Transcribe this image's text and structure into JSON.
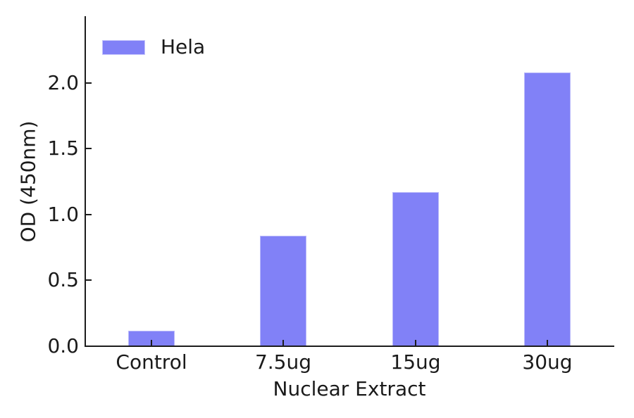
{
  "chart_data": {
    "type": "bar",
    "title": "",
    "xlabel": "Nuclear Extract",
    "ylabel": "OD (450nm)",
    "categories": [
      "Control",
      "7.5ug",
      "15ug",
      "30ug"
    ],
    "series": [
      {
        "name": "Hela",
        "values": [
          0.12,
          0.84,
          1.17,
          2.08
        ],
        "color": "#8181f7"
      }
    ],
    "yticks": [
      "0.0",
      "0.5",
      "1.0",
      "1.5",
      "2.0"
    ],
    "ylim": [
      0,
      2.5
    ],
    "grid": false,
    "legend_position": "upper-left",
    "colors": {
      "bar_fill": "#8181f7",
      "bar_edge": "#b9b9fa",
      "axis": "#1c1c1c",
      "text": "#1a1a1a",
      "background": "#ffffff"
    }
  }
}
